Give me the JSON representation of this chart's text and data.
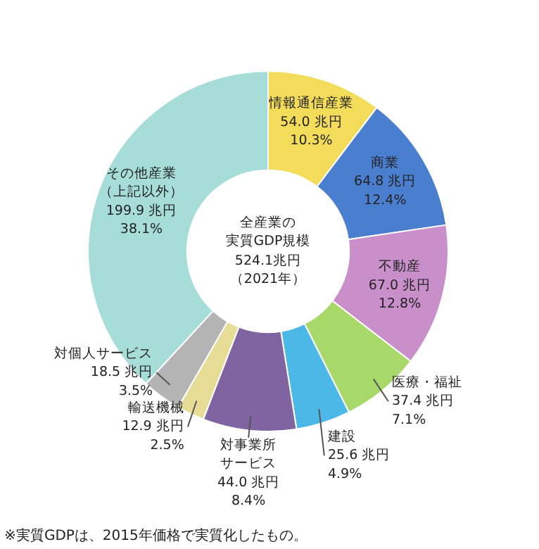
{
  "chart_data": {
    "type": "donut",
    "title": "全産業の実質GDP規模",
    "subtitle": "524.1兆円（2021年）",
    "categories": [
      "情報通信産業",
      "商業",
      "不動産",
      "医療・福祉",
      "建設",
      "対事業所サービス",
      "輸送機械",
      "対個人サービス",
      "その他産業（上記以外）"
    ],
    "values": [
      54.0,
      64.8,
      67.0,
      37.4,
      25.6,
      44.0,
      12.9,
      18.5,
      199.9
    ],
    "value_labels": [
      "54.0 兆円\n10.3%",
      "64.8 兆円\n12.4%",
      "67.0 兆円\n12.8%",
      "37.4 兆円\n7.1%",
      "25.6 兆円\n4.9%",
      "44.0 兆円\n8.4%",
      "12.9 兆円\n2.5%",
      "18.5 兆円\n3.5%",
      "199.9 兆円\n38.1%"
    ],
    "colors": [
      "#f2dc5a",
      "#4a7fd0",
      "#c98fcb",
      "#a8d86a",
      "#4cb8e8",
      "#8064a2",
      "#e6dc96",
      "#b4b4b4",
      "#a6ddd8"
    ],
    "annotations": [
      "※実質GDPは、2015年価格で実質化したもの。"
    ]
  }
}
